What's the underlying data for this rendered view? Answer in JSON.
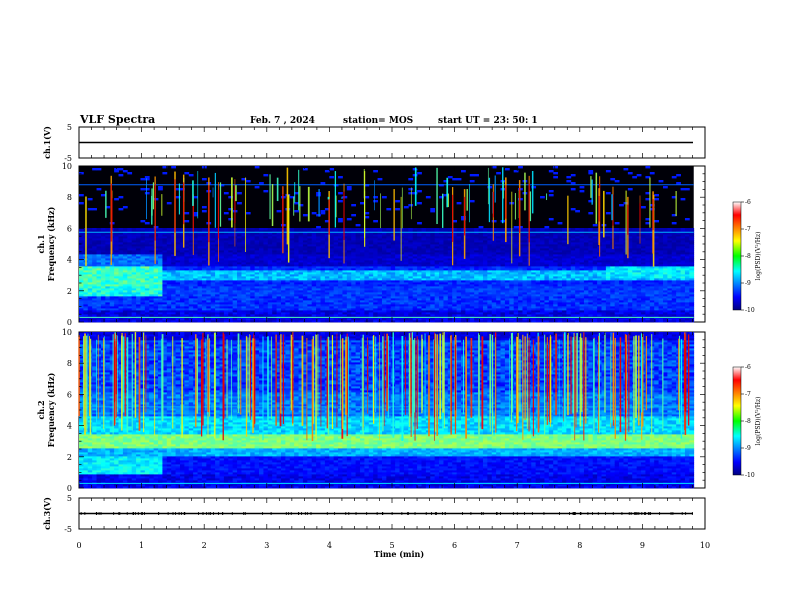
{
  "header": {
    "title": "VLF Spectra",
    "date": "Feb. 7 , 2024",
    "station": "station= MOS",
    "start": "start UT = 23: 50: 1"
  },
  "chart_data": [
    {
      "type": "line",
      "panel": "ch1-waveform",
      "ylabel": "ch.1(V)",
      "ylim": [
        -5,
        5
      ],
      "yticks": [
        "5",
        "-5"
      ],
      "xlim": [
        0,
        10
      ],
      "series": [
        {
          "x": [
            0,
            9.8
          ],
          "values": [
            0,
            0
          ]
        }
      ]
    },
    {
      "type": "heatmap",
      "panel": "ch1-spectrogram",
      "ylabel": "ch.1\nFrequency (kHz)",
      "xlim": [
        0,
        10
      ],
      "ylim": [
        0,
        10
      ],
      "yticks": [
        "0",
        "2",
        "4",
        "6",
        "8",
        "10"
      ],
      "data_end_min": 9.82,
      "colorbar": {
        "label": "log(PSD)(V²/Hz)",
        "range": [
          -10,
          -6
        ],
        "ticks": [
          "-6",
          "-7",
          "-8",
          "-9",
          "-10"
        ]
      }
    },
    {
      "type": "heatmap",
      "panel": "ch2-spectrogram",
      "ylabel": "ch.2\nFrequency (kHz)",
      "xlim": [
        0,
        10
      ],
      "ylim": [
        0,
        10
      ],
      "yticks": [
        "0",
        "2",
        "4",
        "6",
        "8",
        "10"
      ],
      "data_end_min": 9.82,
      "colorbar": {
        "label": "log(PSD)(V²/Hz)",
        "range": [
          -10,
          -6
        ],
        "ticks": [
          "-6",
          "-7",
          "-8",
          "-9",
          "-10"
        ]
      }
    },
    {
      "type": "line",
      "panel": "ch3-waveform",
      "ylabel": "ch.3(V)",
      "ylim": [
        -5,
        5
      ],
      "yticks": [
        "5",
        "-5"
      ],
      "xlim": [
        0,
        10
      ],
      "xlabel": "Time (min)",
      "xticks": [
        "0",
        "1",
        "2",
        "3",
        "4",
        "5",
        "6",
        "7",
        "8",
        "9",
        "10"
      ],
      "series": [
        {
          "x": [
            0,
            9.8
          ],
          "values": [
            0,
            0
          ]
        }
      ]
    }
  ]
}
